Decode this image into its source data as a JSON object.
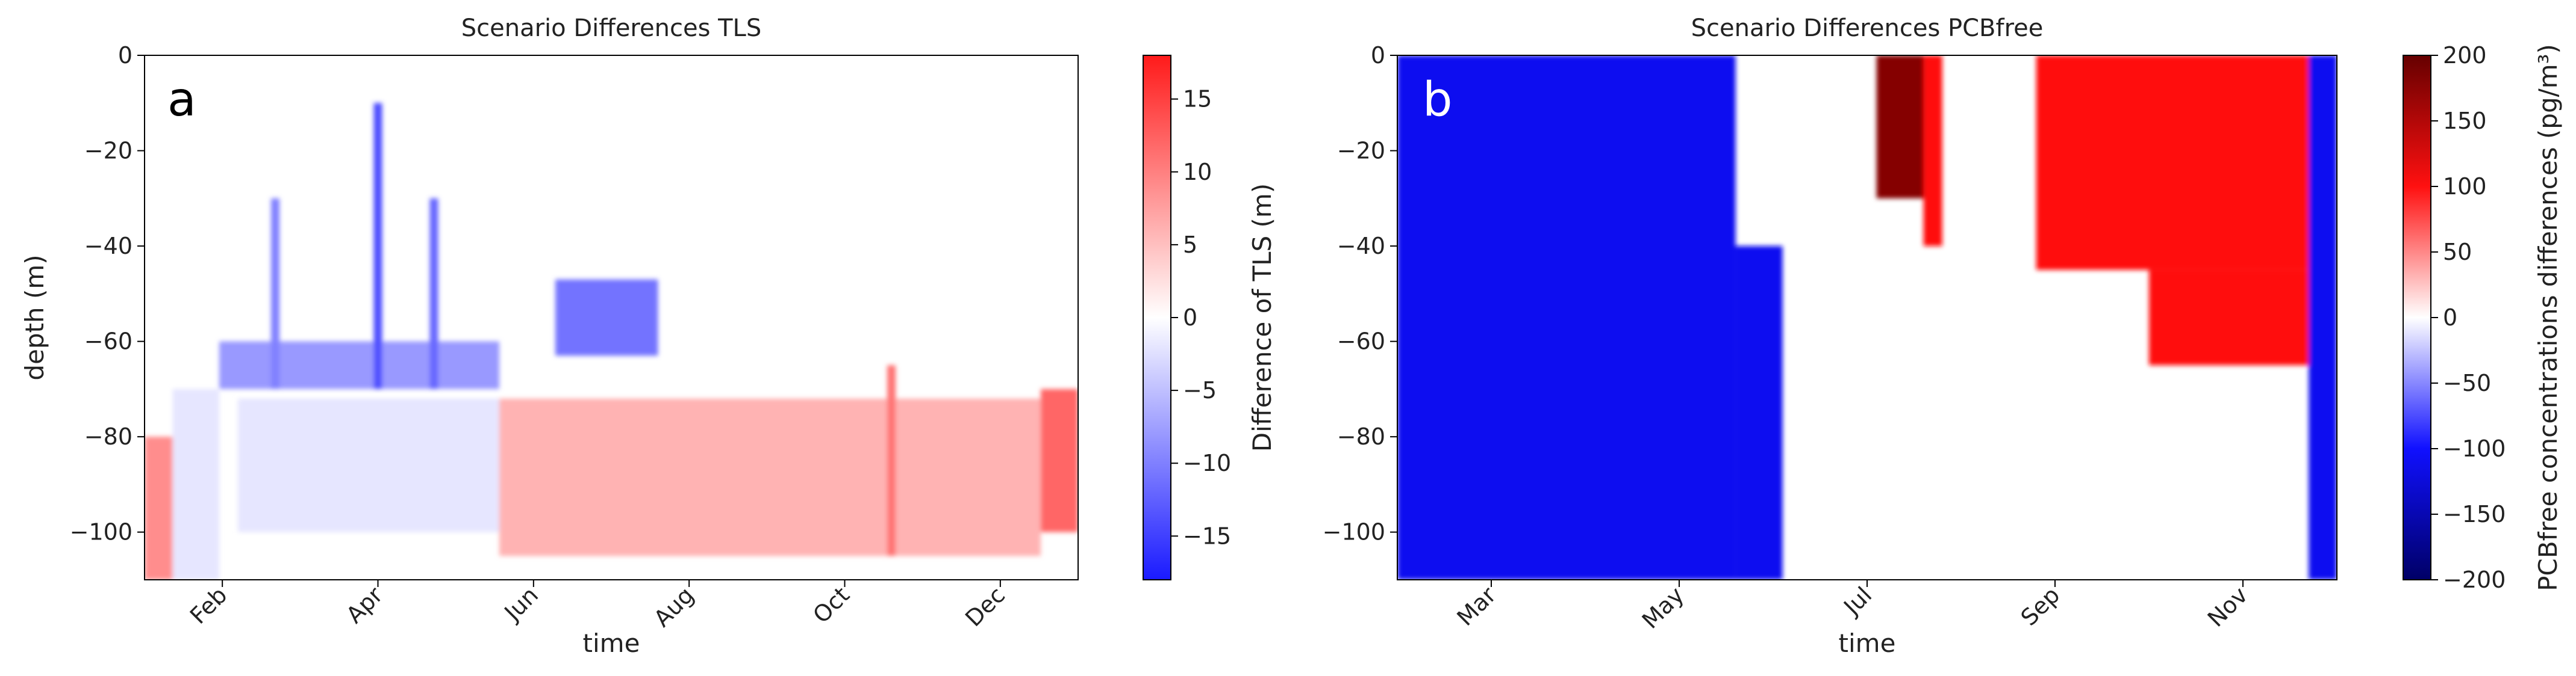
{
  "chart_data": [
    {
      "type": "heatmap",
      "title": "Scenario Differences TLS",
      "panel_label": "a",
      "xlabel": "time",
      "ylabel": "depth (m)",
      "ylim": [
        -110,
        0
      ],
      "yticks": [
        0,
        -20,
        -40,
        -60,
        -80,
        -100
      ],
      "xticks": [
        "Feb",
        "Apr",
        "Jun",
        "Aug",
        "Oct",
        "Dec"
      ],
      "colorbar": {
        "label": "Difference of TLS  (m)",
        "range": [
          -18,
          18
        ],
        "ticks": [
          15,
          10,
          5,
          0,
          -5,
          -10,
          -15
        ],
        "colors": {
          "low": "#1a1aff",
          "mid": "#ffffff",
          "high": "#ff1a1a"
        }
      },
      "regions": [
        {
          "from": 0.0,
          "to": 0.03,
          "d0": -110,
          "d1": -80,
          "value": 9
        },
        {
          "from": 0.03,
          "to": 0.08,
          "d0": -110,
          "d1": -70,
          "value": -2
        },
        {
          "from": 0.08,
          "to": 0.38,
          "d0": -70,
          "d1": -60,
          "value": -8
        },
        {
          "from": 0.1,
          "to": 0.38,
          "d0": -100,
          "d1": -72,
          "value": -2
        },
        {
          "from": 0.38,
          "to": 0.96,
          "d0": -105,
          "d1": -72,
          "value": 6
        },
        {
          "from": 0.44,
          "to": 0.55,
          "d0": -63,
          "d1": -47,
          "value": -11
        },
        {
          "from": 0.96,
          "to": 1.0,
          "d0": -100,
          "d1": -70,
          "value": 12
        }
      ],
      "streaks": [
        {
          "at": 0.14,
          "d0": -70,
          "d1": -30,
          "value": -10
        },
        {
          "at": 0.25,
          "d0": -70,
          "d1": -10,
          "value": -14
        },
        {
          "at": 0.31,
          "d0": -70,
          "d1": -30,
          "value": -12
        },
        {
          "at": 0.8,
          "d0": -105,
          "d1": -65,
          "value": 11
        }
      ]
    },
    {
      "type": "heatmap",
      "title": "Scenario Differences PCBfree",
      "panel_label": "b",
      "xlabel": "time",
      "ylabel": "",
      "ylim": [
        -110,
        0
      ],
      "yticks": [
        0,
        -20,
        -40,
        -60,
        -80,
        -100
      ],
      "xticks": [
        "Mar",
        "May",
        "Jul",
        "Sep",
        "Nov"
      ],
      "colorbar": {
        "label": "PCBfree concentrations differences (pg/m³)",
        "range": [
          -200,
          200
        ],
        "ticks": [
          200,
          150,
          100,
          50,
          0,
          -50,
          -100,
          -150,
          -200
        ],
        "colors": {
          "low": "#000066",
          "lowmid": "#1010ff",
          "mid": "#ffffff",
          "highmid": "#ff1010",
          "high": "#660000"
        }
      },
      "regions": [
        {
          "from": 0.0,
          "to": 0.36,
          "d0": -110,
          "d1": 0,
          "value": -110
        },
        {
          "from": 0.36,
          "to": 0.41,
          "d0": -110,
          "d1": -40,
          "value": -110
        },
        {
          "from": 0.51,
          "to": 0.56,
          "d0": -30,
          "d1": 0,
          "value": 180
        },
        {
          "from": 0.56,
          "to": 0.58,
          "d0": -40,
          "d1": 0,
          "value": 100
        },
        {
          "from": 0.68,
          "to": 0.97,
          "d0": -45,
          "d1": 0,
          "value": 100
        },
        {
          "from": 0.8,
          "to": 0.97,
          "d0": -65,
          "d1": -45,
          "value": 100
        },
        {
          "from": 0.97,
          "to": 1.0,
          "d0": -110,
          "d1": 0,
          "value": -110
        }
      ]
    }
  ]
}
